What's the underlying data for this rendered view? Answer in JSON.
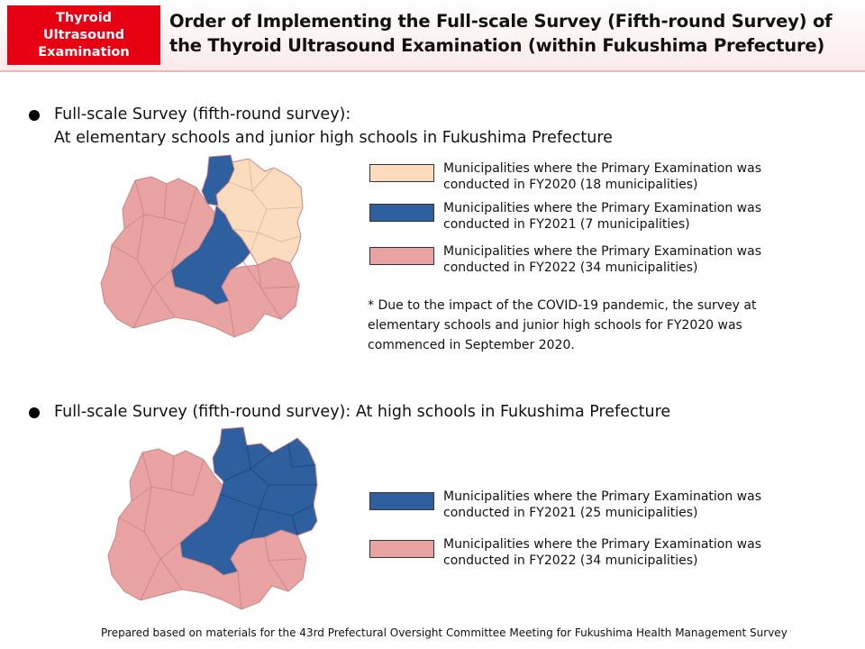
{
  "header": {
    "tag_lines": [
      "Thyroid",
      "Ultrasound",
      "Examination"
    ],
    "title": "Order of Implementing the Full-scale Survey (Fifth-round Survey) of the Thyroid Ultrasound Examination (within Fukushima Prefecture)"
  },
  "colors": {
    "fy2020": "#fbdcbf",
    "fy2021": "#2e5f9e",
    "fy2022": "#e9a3a3",
    "border": "#c98686",
    "tag": "#e60012"
  },
  "section1": {
    "heading_line1": "Full-scale Survey (fifth-round survey):",
    "heading_line2": "At elementary schools and junior high schools in Fukushima Prefecture",
    "legend": [
      {
        "label": "Municipalities where the Primary Examination was conducted in FY2020 (18 municipalities)",
        "color_key": "fy2020"
      },
      {
        "label": "Municipalities where the Primary Examination was conducted in FY2021 (7 municipalities)",
        "color_key": "fy2021"
      },
      {
        "label": "Municipalities where the Primary Examination was conducted in FY2022 (34 municipalities)",
        "color_key": "fy2022"
      }
    ],
    "note": "* Due to the impact of the COVID-19 pandemic, the survey at elementary schools and junior high schools for FY2020 was commenced in September 2020."
  },
  "section2": {
    "heading": "Full-scale Survey (fifth-round survey): At high schools in Fukushima Prefecture",
    "legend": [
      {
        "label": "Municipalities where the Primary Examination was conducted in FY2021 (25 municipalities)",
        "color_key": "fy2021"
      },
      {
        "label": "Municipalities where the Primary Examination was conducted in FY2022 (34 municipalities)",
        "color_key": "fy2022"
      }
    ]
  },
  "footer": "Prepared based on materials for the 43rd Prefectural Oversight Committee Meeting for Fukushima Health Management Survey"
}
